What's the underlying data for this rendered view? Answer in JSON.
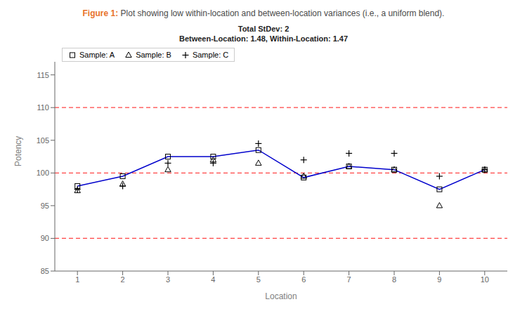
{
  "chart_data": {
    "type": "scatter",
    "title": [
      {
        "text": "Figure 1:",
        "color": "#E8722A"
      },
      {
        "text": " Plot showing low within-location and between-location variances (i.e., a uniform blend).",
        "color": "#4a4a4a"
      }
    ],
    "subtitle": [
      "Total StDev: 2",
      "Between-Location: 1.48, Within-Location: 1.47"
    ],
    "x_label": "Location",
    "y_label": "Potency",
    "x": [
      1,
      2,
      3,
      4,
      5,
      6,
      7,
      8,
      9,
      10
    ],
    "xlim": [
      0.5,
      10.5
    ],
    "xticks": [
      1,
      2,
      3,
      4,
      5,
      6,
      7,
      8,
      9,
      10
    ],
    "ylim": [
      85,
      117
    ],
    "yticks": [
      85,
      90,
      95,
      100,
      105,
      110,
      115
    ],
    "grid": false,
    "legend": "upper left",
    "color": "black",
    "reference_lines": {
      "values": [
        90,
        100,
        110
      ],
      "color": "#FF4444",
      "line_style": "dashed"
    },
    "series": [
      {
        "name": "Sample: A",
        "type": "line",
        "color": "#0000CC",
        "marker": "square",
        "values": [
          98.0,
          99.5,
          102.5,
          102.5,
          103.5,
          99.3,
          101.0,
          100.5,
          97.5,
          100.5
        ]
      },
      {
        "name": "Sample: B",
        "type": "scatter",
        "marker": "triangle",
        "values": [
          97.3,
          98.3,
          100.5,
          102.0,
          101.5,
          99.5,
          101.0,
          100.5,
          95.0,
          100.5
        ]
      },
      {
        "name": "Sample: C",
        "type": "scatter",
        "marker": "plus",
        "values": [
          97.5,
          98.0,
          101.5,
          101.5,
          104.5,
          102.0,
          103.0,
          103.0,
          99.5,
          100.5
        ]
      }
    ]
  }
}
